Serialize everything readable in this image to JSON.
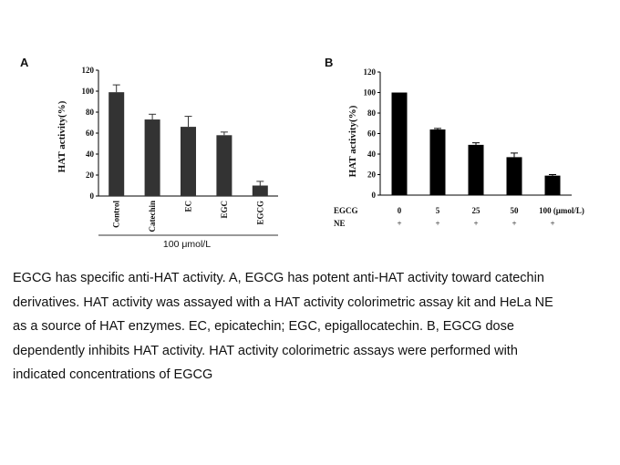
{
  "chart_data": [
    {
      "type": "bar",
      "panel": "A",
      "categories": [
        "Control",
        "Catechin",
        "EC",
        "EGC",
        "EGCG"
      ],
      "values": [
        99,
        73,
        66,
        58,
        10
      ],
      "errors": [
        7,
        5,
        10,
        3,
        4
      ],
      "ylabel": "HAT activity(%)",
      "ylim": [
        0,
        120
      ],
      "yticks": [
        0,
        20,
        40,
        60,
        80,
        100,
        120
      ],
      "group_label": "100 μmol/L",
      "bar_color": "#333333"
    },
    {
      "type": "bar",
      "panel": "B",
      "categories": [
        "0",
        "5",
        "25",
        "50",
        "100 (μmol/L)"
      ],
      "values": [
        100,
        64,
        49,
        37,
        19
      ],
      "errors": [
        0,
        1,
        2,
        4,
        1
      ],
      "ylabel": "HAT activity(%)",
      "ylim": [
        0,
        120
      ],
      "yticks": [
        0,
        20,
        40,
        60,
        80,
        100,
        120
      ],
      "row1_label": "EGCG",
      "row2_label": "NE",
      "row2_values": [
        "+",
        "+",
        "+",
        "+",
        "+"
      ],
      "bar_color": "#000000"
    }
  ],
  "caption": {
    "lines": [
      "EGCG has specific anti-HAT activity. A, EGCG has potent anti-HAT activity toward catechin",
      "derivatives. HAT activity was assayed with a HAT activity colorimetric assay kit and HeLa NE",
      "as a source of HAT enzymes. EC, epicatechin; EGC, epigallocatechin. B, EGCG dose",
      "dependently inhibits HAT activity. HAT activity colorimetric assays were performed with",
      "indicated concentrations of EGCG"
    ]
  }
}
